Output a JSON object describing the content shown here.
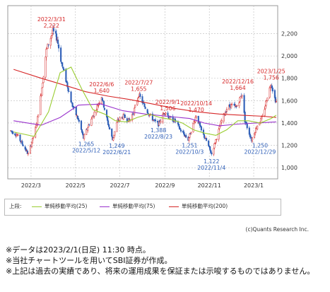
{
  "chart_data": {
    "type": "candlestick",
    "y_ticks": [
      "2,200",
      "2,000",
      "1,800",
      "1,600",
      "1,400",
      "1,200",
      "1,000"
    ],
    "y_tick_values": [
      2200,
      2000,
      1800,
      1600,
      1400,
      1200,
      1000
    ],
    "ylim": [
      900,
      2450
    ],
    "x_ticks": [
      "2022/3",
      "2022/5",
      "2022/7",
      "2022/9",
      "2022/11",
      "2023/1"
    ],
    "x_tick_dates": [
      "2022-03-01",
      "2022-05-01",
      "2022-07-01",
      "2022-09-01",
      "2022-11-01",
      "2023-01-01"
    ],
    "x_range": [
      "2022-01-28",
      "2023-02-03"
    ],
    "colors": {
      "up": "#d62728",
      "down": "#2f5fb8",
      "ma25": "#9acd32",
      "ma75": "#9932cc",
      "ma200": "#d62728",
      "label_high": "#d62728",
      "label_low": "#2f5fb8"
    },
    "price_path": [
      [
        "2022-02-01",
        1330
      ],
      [
        "2022-02-10",
        1290
      ],
      [
        "2022-02-20",
        1180
      ],
      [
        "2022-02-25",
        1120
      ],
      [
        "2022-03-03",
        1250
      ],
      [
        "2022-03-09",
        1400
      ],
      [
        "2022-03-16",
        1720
      ],
      [
        "2022-03-22",
        2050
      ],
      [
        "2022-03-31",
        2222
      ],
      [
        "2022-04-06",
        2150
      ],
      [
        "2022-04-12",
        1930
      ],
      [
        "2022-04-19",
        1760
      ],
      [
        "2022-04-26",
        1570
      ],
      [
        "2022-05-06",
        1410
      ],
      [
        "2022-05-12",
        1265
      ],
      [
        "2022-05-19",
        1380
      ],
      [
        "2022-05-27",
        1490
      ],
      [
        "2022-06-06",
        1640
      ],
      [
        "2022-06-13",
        1440
      ],
      [
        "2022-06-21",
        1249
      ],
      [
        "2022-06-28",
        1420
      ],
      [
        "2022-07-06",
        1460
      ],
      [
        "2022-07-14",
        1420
      ],
      [
        "2022-07-20",
        1500
      ],
      [
        "2022-07-27",
        1655
      ],
      [
        "2022-08-03",
        1560
      ],
      [
        "2022-08-10",
        1480
      ],
      [
        "2022-08-17",
        1420
      ],
      [
        "2022-08-23",
        1388
      ],
      [
        "2022-08-27",
        1440
      ],
      [
        "2022-09-01",
        1506
      ],
      [
        "2022-09-08",
        1440
      ],
      [
        "2022-09-15",
        1420
      ],
      [
        "2022-09-22",
        1340
      ],
      [
        "2022-10-03",
        1251
      ],
      [
        "2022-10-07",
        1330
      ],
      [
        "2022-10-14",
        1470
      ],
      [
        "2022-10-21",
        1330
      ],
      [
        "2022-10-28",
        1240
      ],
      [
        "2022-11-04",
        1122
      ],
      [
        "2022-11-11",
        1270
      ],
      [
        "2022-11-18",
        1420
      ],
      [
        "2022-11-25",
        1530
      ],
      [
        "2022-12-01",
        1560
      ],
      [
        "2022-12-08",
        1540
      ],
      [
        "2022-12-16",
        1664
      ],
      [
        "2022-12-20",
        1420
      ],
      [
        "2022-12-29",
        1250
      ],
      [
        "2023-01-06",
        1380
      ],
      [
        "2023-01-13",
        1450
      ],
      [
        "2023-01-20",
        1640
      ],
      [
        "2023-01-25",
        1756
      ],
      [
        "2023-01-30",
        1620
      ],
      [
        "2023-02-01",
        1590
      ]
    ],
    "ma25": [
      [
        "2022-02-05",
        1320
      ],
      [
        "2022-03-05",
        1280
      ],
      [
        "2022-03-25",
        1500
      ],
      [
        "2022-04-10",
        1850
      ],
      [
        "2022-04-25",
        1900
      ],
      [
        "2022-05-10",
        1700
      ],
      [
        "2022-05-25",
        1520
      ],
      [
        "2022-06-10",
        1480
      ],
      [
        "2022-06-25",
        1420
      ],
      [
        "2022-07-10",
        1410
      ],
      [
        "2022-07-25",
        1450
      ],
      [
        "2022-08-10",
        1480
      ],
      [
        "2022-08-25",
        1450
      ],
      [
        "2022-09-10",
        1430
      ],
      [
        "2022-09-25",
        1400
      ],
      [
        "2022-10-10",
        1340
      ],
      [
        "2022-10-25",
        1310
      ],
      [
        "2022-11-10",
        1290
      ],
      [
        "2022-11-25",
        1340
      ],
      [
        "2022-12-10",
        1420
      ],
      [
        "2022-12-25",
        1420
      ],
      [
        "2023-01-10",
        1400
      ],
      [
        "2023-01-25",
        1440
      ],
      [
        "2023-02-01",
        1470
      ]
    ],
    "ma75": [
      [
        "2022-02-05",
        1420
      ],
      [
        "2022-03-15",
        1380
      ],
      [
        "2022-04-10",
        1450
      ],
      [
        "2022-05-05",
        1560
      ],
      [
        "2022-06-05",
        1570
      ],
      [
        "2022-07-05",
        1510
      ],
      [
        "2022-08-05",
        1480
      ],
      [
        "2022-09-05",
        1460
      ],
      [
        "2022-10-05",
        1440
      ],
      [
        "2022-10-25",
        1400
      ],
      [
        "2022-11-15",
        1375
      ],
      [
        "2022-12-10",
        1390
      ],
      [
        "2023-01-05",
        1400
      ],
      [
        "2023-02-01",
        1410
      ]
    ],
    "ma200": [
      [
        "2022-02-05",
        1880
      ],
      [
        "2022-03-15",
        1800
      ],
      [
        "2022-04-15",
        1740
      ],
      [
        "2022-05-15",
        1680
      ],
      [
        "2022-06-15",
        1640
      ],
      [
        "2022-07-15",
        1610
      ],
      [
        "2022-08-15",
        1570
      ],
      [
        "2022-09-15",
        1530
      ],
      [
        "2022-10-15",
        1500
      ],
      [
        "2022-11-15",
        1480
      ],
      [
        "2022-12-15",
        1470
      ],
      [
        "2023-01-15",
        1460
      ],
      [
        "2023-02-01",
        1450
      ]
    ],
    "annotations": [
      {
        "kind": "high",
        "date": "2022/3/31",
        "value": "2,222",
        "x": "2022-03-31",
        "y": 2222
      },
      {
        "kind": "high",
        "date": "2022/6/6",
        "value": "1,640",
        "x": "2022-06-06",
        "y": 1640
      },
      {
        "kind": "high",
        "date": "2022/7/27",
        "value": "1,655",
        "x": "2022-07-27",
        "y": 1655
      },
      {
        "kind": "high",
        "date": "2022/9/1",
        "value": "1,506",
        "x": "2022-09-01",
        "y": 1506
      },
      {
        "kind": "high",
        "date": "2022/10/14",
        "value": "1,470",
        "x": "2022-10-14",
        "y": 1470
      },
      {
        "kind": "high",
        "date": "2022/12/16",
        "value": "1,664",
        "x": "2022-12-16",
        "y": 1664
      },
      {
        "kind": "high",
        "date": "2023/1/25",
        "value": "1,756",
        "x": "2023-01-25",
        "y": 1756
      },
      {
        "kind": "low",
        "date": "2022/5/12",
        "value": "1,265",
        "x": "2022-05-12",
        "y": 1265
      },
      {
        "kind": "low",
        "date": "2022/6/21",
        "value": "1,249",
        "x": "2022-06-21",
        "y": 1249
      },
      {
        "kind": "low",
        "date": "2022/8/23",
        "value": "1,388",
        "x": "2022-08-23",
        "y": 1388
      },
      {
        "kind": "low",
        "date": "2022/10/3",
        "value": "1,251",
        "x": "2022-10-03",
        "y": 1251
      },
      {
        "kind": "low",
        "date": "2022/11/4",
        "value": "1,122",
        "x": "2022-11-04",
        "y": 1122
      },
      {
        "kind": "low",
        "date": "2022/12/29",
        "value": "1,250",
        "x": "2022-12-29",
        "y": 1250
      }
    ]
  },
  "legend": {
    "prefix": "上段:",
    "items": [
      {
        "label": "単純移動平均(25)",
        "color": "#9acd32"
      },
      {
        "label": "単純移動平均(75)",
        "color": "#9932cc"
      },
      {
        "label": "単純移動平均(200)",
        "color": "#d62728"
      }
    ]
  },
  "credit": "(c)Quants Research Inc.",
  "notes": [
    "※データは2023/2/1(日足) 11:30 時点。",
    "※当社チャートツールを用いてSBI証券が作成。",
    "※上記は過去の実績であり、将来の運用成果を保証または示唆するものではありません。"
  ]
}
